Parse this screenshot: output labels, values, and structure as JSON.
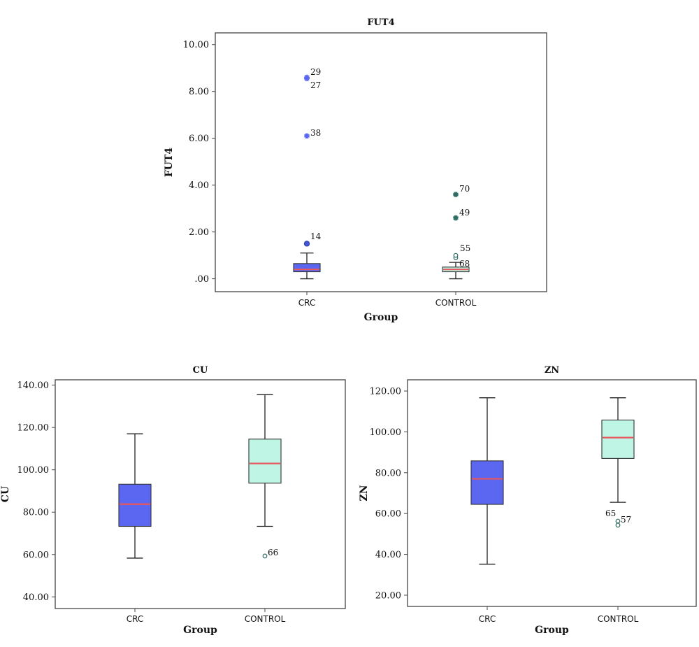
{
  "chart_data": [
    {
      "type": "boxplot",
      "title": "FUT4",
      "xlabel": "Group",
      "ylabel": "FUT4",
      "ylim": [
        -0.55,
        10.5
      ],
      "yticks": [
        0,
        2,
        4,
        6,
        8,
        10
      ],
      "ytick_labels": [
        ".00",
        "2.00",
        "4.00",
        "6.00",
        "8.00",
        "10.00"
      ],
      "categories": [
        "CRC",
        "CONTROL"
      ],
      "boxes": [
        {
          "group": "CRC",
          "color": "#5b67f0",
          "whisker_low": 0.0,
          "q1": 0.3,
          "median": 0.4,
          "q3": 0.65,
          "whisker_high": 1.1
        },
        {
          "group": "CONTROL",
          "color": "#bff5e5",
          "whisker_low": 0.0,
          "q1": 0.3,
          "median": 0.4,
          "q3": 0.5,
          "whisker_high": 0.7
        }
      ],
      "outliers": [
        {
          "group": "CRC",
          "value": 1.5,
          "label": "14",
          "marker": "circle"
        },
        {
          "group": "CRC",
          "value": 6.1,
          "label": "38",
          "marker": "star"
        },
        {
          "group": "CRC",
          "value": 8.55,
          "label": "27",
          "marker": "star"
        },
        {
          "group": "CRC",
          "value": 8.6,
          "label": "29",
          "marker": "star"
        },
        {
          "group": "CONTROL",
          "value": 0.9,
          "label": "68",
          "marker": "circle"
        },
        {
          "group": "CONTROL",
          "value": 1.0,
          "label": "55",
          "marker": "circle"
        },
        {
          "group": "CONTROL",
          "value": 2.6,
          "label": "49",
          "marker": "star"
        },
        {
          "group": "CONTROL",
          "value": 3.6,
          "label": "70",
          "marker": "star"
        }
      ]
    },
    {
      "type": "boxplot",
      "title": "CU",
      "xlabel": "Group",
      "ylabel": "CU",
      "ylim": [
        34.5,
        142.5
      ],
      "yticks": [
        40,
        60,
        80,
        100,
        120,
        140
      ],
      "ytick_labels": [
        "40.00",
        "60.00",
        "80.00",
        "100.00",
        "120.00",
        "140.00"
      ],
      "categories": [
        "CRC",
        "CONTROL"
      ],
      "boxes": [
        {
          "group": "CRC",
          "color": "#5b67f0",
          "whisker_low": 58.3,
          "q1": 73.3,
          "median": 83.8,
          "q3": 93.2,
          "whisker_high": 117.0
        },
        {
          "group": "CONTROL",
          "color": "#bff5e5",
          "whisker_low": 73.3,
          "q1": 93.7,
          "median": 103.0,
          "q3": 114.5,
          "whisker_high": 135.5
        }
      ],
      "outliers": [
        {
          "group": "CONTROL",
          "value": 59.3,
          "label": "66",
          "marker": "circle"
        }
      ]
    },
    {
      "type": "boxplot",
      "title": "ZN",
      "xlabel": "Group",
      "ylabel": "ZN",
      "ylim": [
        14.5,
        125.5
      ],
      "yticks": [
        20,
        40,
        60,
        80,
        100,
        120
      ],
      "ytick_labels": [
        "20.00",
        "40.00",
        "60.00",
        "80.00",
        "100.00",
        "120.00"
      ],
      "categories": [
        "CRC",
        "CONTROL"
      ],
      "boxes": [
        {
          "group": "CRC",
          "color": "#5b67f0",
          "whisker_low": 35.2,
          "q1": 64.5,
          "median": 77.0,
          "q3": 85.8,
          "whisker_high": 116.7
        },
        {
          "group": "CONTROL",
          "color": "#bff5e5",
          "whisker_low": 65.5,
          "q1": 87.0,
          "median": 97.2,
          "q3": 105.8,
          "whisker_high": 116.7
        }
      ],
      "outliers": [
        {
          "group": "CONTROL",
          "value": 56.3,
          "label": "65",
          "marker": "circle"
        },
        {
          "group": "CONTROL",
          "value": 54.3,
          "label": "57",
          "marker": "circle"
        }
      ]
    }
  ],
  "colors": {
    "median_line": "#e8575c",
    "crc_box": "#5b67f0",
    "control_box": "#bff5e5",
    "star_crc": "#5b67f0",
    "star_control": "#2e6b63",
    "frame": "#444444"
  }
}
